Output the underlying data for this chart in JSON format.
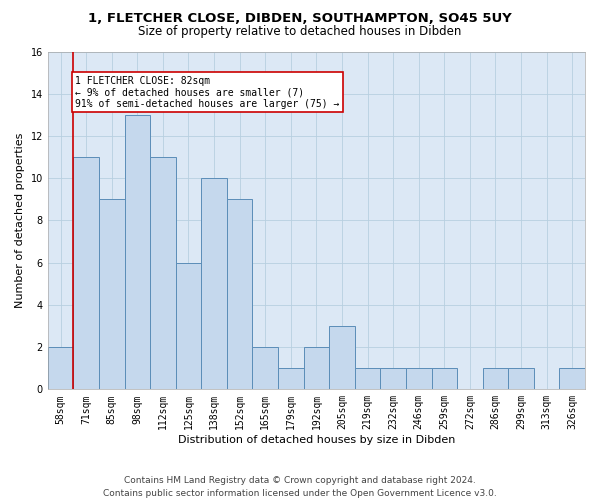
{
  "title1": "1, FLETCHER CLOSE, DIBDEN, SOUTHAMPTON, SO45 5UY",
  "title2": "Size of property relative to detached houses in Dibden",
  "xlabel": "Distribution of detached houses by size in Dibden",
  "ylabel": "Number of detached properties",
  "categories": [
    "58sqm",
    "71sqm",
    "85sqm",
    "98sqm",
    "112sqm",
    "125sqm",
    "138sqm",
    "152sqm",
    "165sqm",
    "179sqm",
    "192sqm",
    "205sqm",
    "219sqm",
    "232sqm",
    "246sqm",
    "259sqm",
    "272sqm",
    "286sqm",
    "299sqm",
    "313sqm",
    "326sqm"
  ],
  "values": [
    2,
    11,
    9,
    13,
    11,
    6,
    10,
    9,
    2,
    1,
    2,
    3,
    1,
    1,
    1,
    1,
    0,
    1,
    1,
    0,
    1
  ],
  "bar_color": "#c5d8ed",
  "bar_edge_color": "#5b8db8",
  "red_line_x": 0.5,
  "annotation_text": "1 FLETCHER CLOSE: 82sqm\n← 9% of detached houses are smaller (7)\n91% of semi-detached houses are larger (75) →",
  "annotation_box_color": "#ffffff",
  "annotation_edge_color": "#cc0000",
  "red_line_color": "#cc0000",
  "ylim": [
    0,
    16
  ],
  "yticks": [
    0,
    2,
    4,
    6,
    8,
    10,
    12,
    14,
    16
  ],
  "footer1": "Contains HM Land Registry data © Crown copyright and database right 2024.",
  "footer2": "Contains public sector information licensed under the Open Government Licence v3.0.",
  "bg_color": "#ffffff",
  "plot_bg_color": "#dce8f5",
  "grid_color": "#b8cfe0",
  "title1_fontsize": 9.5,
  "title2_fontsize": 8.5,
  "xlabel_fontsize": 8,
  "ylabel_fontsize": 8,
  "tick_fontsize": 7,
  "annotation_fontsize": 7,
  "footer_fontsize": 6.5
}
